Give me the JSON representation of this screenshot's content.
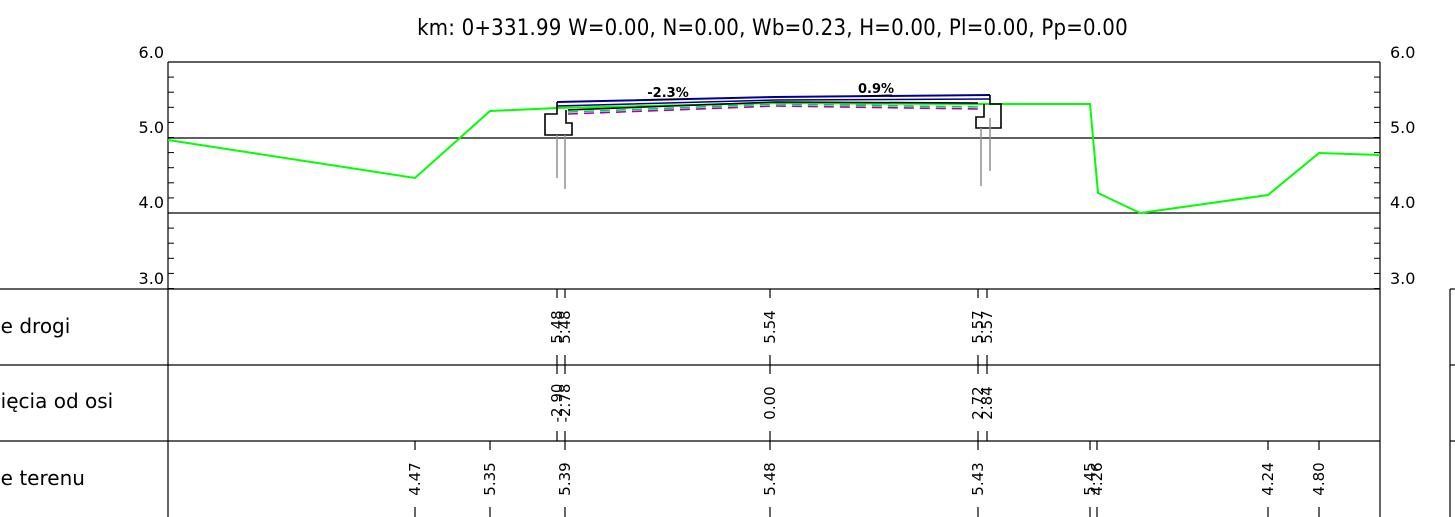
{
  "title": "km: 0+331.99  W=0.00,  N=0.00,  Wb=0.23,  H=0.00,  Pl=0.00,  Pp=0.00",
  "axis": {
    "ticks_left": [
      "6.0",
      "5.0",
      "4.0",
      "3.0"
    ],
    "ticks_right": [
      "6.0",
      "5.0",
      "4.0",
      "3.0"
    ]
  },
  "slopes": {
    "left": "-2.3%",
    "right": "0.9%"
  },
  "rows": {
    "road_elev_label": "ne drogi",
    "offset_label": "nięcia od osi",
    "terrain_label": "ne terenu"
  },
  "road_elev_values": [
    "5.48",
    "5.48",
    "5.54",
    "5.57",
    "5.57"
  ],
  "offset_values": [
    "-2.90",
    "-2.78",
    "0.00",
    "2.72",
    "2.84"
  ],
  "terrain_values": [
    "4.47",
    "5.35",
    "5.39",
    "5.48",
    "5.43",
    "5.45",
    "4.26",
    "4.24",
    "4.80"
  ],
  "colors": {
    "terrain": "#00ff00",
    "road": "#00008b",
    "subgrade": "#aa00aa",
    "layer": "#00cc66",
    "pile": "#909090"
  }
}
